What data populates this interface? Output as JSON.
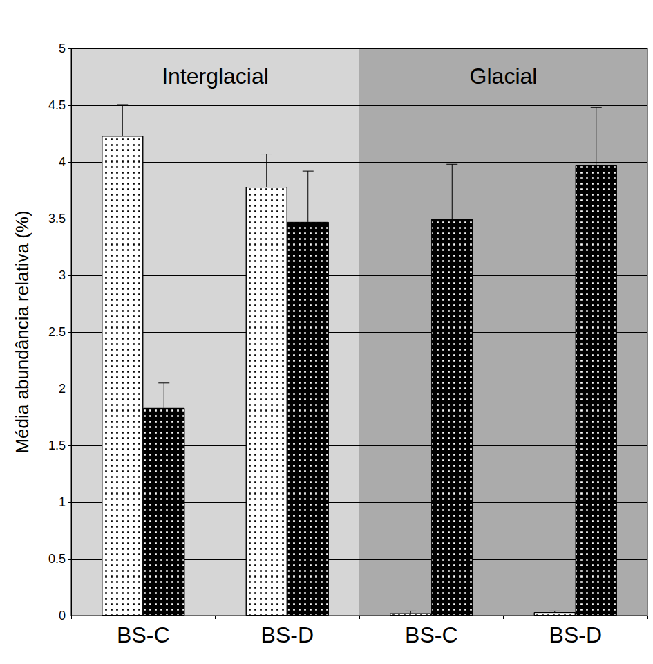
{
  "chart_data": {
    "type": "bar",
    "y_label": "Média abundância relativa (%)",
    "categories": [
      "BS-C",
      "BS-D",
      "BS-C",
      "BS-D"
    ],
    "series": [
      {
        "color": "#ffffff",
        "values": [
          4.23,
          3.78,
          0.02,
          0.03
        ],
        "errors": [
          0.27,
          0.29,
          0.02,
          0.01
        ]
      },
      {
        "color": "#000000",
        "values": [
          1.83,
          3.47,
          3.5,
          3.97
        ],
        "errors": [
          0.22,
          0.45,
          0.48,
          0.51
        ]
      }
    ],
    "regions": [
      {
        "text": "Interglacial",
        "start": 0,
        "end": 1,
        "color": "#d6d6d6"
      },
      {
        "text": "Glacial",
        "start": 2,
        "end": 3,
        "color": "#ababab"
      }
    ],
    "ylim": [
      0,
      5
    ],
    "yticks": [
      0,
      0.5,
      1,
      1.5,
      2,
      2.5,
      3,
      3.5,
      4,
      4.5,
      5
    ],
    "grid": true
  }
}
